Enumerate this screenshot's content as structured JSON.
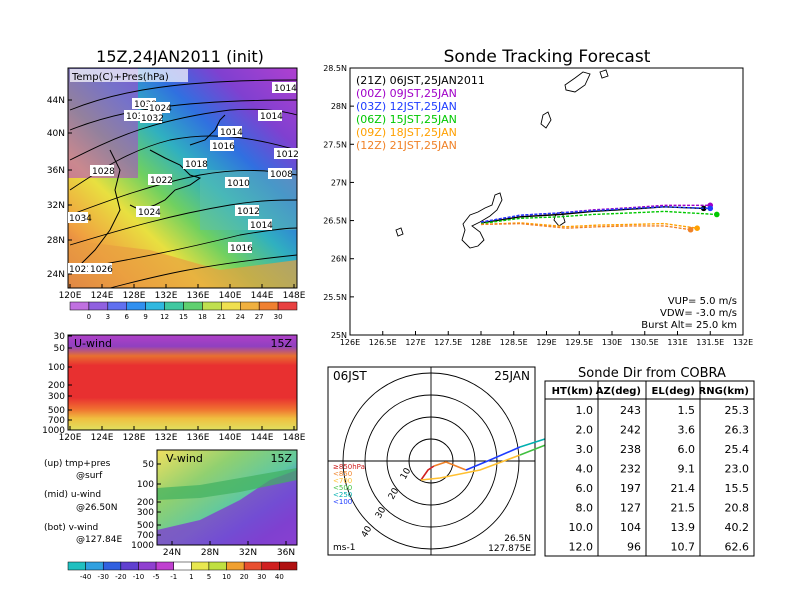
{
  "left_map": {
    "title": "15Z,24JAN2011 (init)",
    "legend": "Temp(C)+Pres(hPa)",
    "lat_ticks": [
      "44N",
      "40N",
      "36N",
      "32N",
      "28N",
      "24N"
    ],
    "lon_ticks": [
      "120E",
      "124E",
      "128E",
      "132E",
      "136E",
      "140E",
      "144E",
      "148E"
    ],
    "isobar_labels": [
      "1014",
      "1014",
      "1030",
      "1032",
      "1024",
      "1032",
      "1014",
      "1016",
      "1012",
      "1028",
      "1018",
      "1008",
      "1022",
      "1010",
      "1024",
      "1012",
      "1014",
      "1034",
      "1016",
      "1021",
      "1026"
    ],
    "colorbar": [
      "0",
      "3",
      "6",
      "9",
      "12",
      "15",
      "18",
      "21",
      "24",
      "27",
      "30"
    ]
  },
  "u_panel": {
    "title": "U-wind",
    "time": "15Z",
    "pres_ticks": [
      "30",
      "50",
      "100",
      "200",
      "300",
      "500",
      "700",
      "1000"
    ],
    "lon_ticks": [
      "120E",
      "124E",
      "128E",
      "132E",
      "136E",
      "140E",
      "144E",
      "148E"
    ]
  },
  "v_panel": {
    "title": "V-wind",
    "time": "15Z",
    "pres_ticks": [
      "50",
      "100",
      "200",
      "300",
      "500",
      "700",
      "1000"
    ],
    "lat_ticks": [
      "24N",
      "28N",
      "32N",
      "36N"
    ],
    "colorbar": [
      "-40",
      "-30",
      "-20",
      "-10",
      "-5",
      "-1",
      "1",
      "5",
      "10",
      "20",
      "30",
      "40"
    ]
  },
  "notes": [
    "(up) tmp+pres",
    "@surf",
    "(mid) u-wind",
    "@26.50N",
    "(bot) v-wind",
    "@127.84E"
  ],
  "track": {
    "title": "Sonde Tracking Forecast",
    "lat_ticks": [
      "28.5N",
      "28N",
      "27.5N",
      "27N",
      "26.5N",
      "26N",
      "25.5N",
      "25N"
    ],
    "lon_ticks": [
      "126E",
      "126.5E",
      "127E",
      "127.5E",
      "128E",
      "128.5E",
      "129E",
      "129.5E",
      "130E",
      "130.5E",
      "131E",
      "131.5E",
      "132E"
    ],
    "legend": [
      {
        "label": "(21Z)  06JST,25JAN2011",
        "color": "#000000"
      },
      {
        "label": "(00Z)  09JST,25JAN",
        "color": "#a000c8"
      },
      {
        "label": "(03Z)  12JST,25JAN",
        "color": "#1e3cff"
      },
      {
        "label": "(06Z)  15JST,25JAN",
        "color": "#00c800"
      },
      {
        "label": "(09Z)  18JST,25JAN",
        "color": "#ffa000"
      },
      {
        "label": "(12Z)  21JST,25JAN",
        "color": "#f08228"
      }
    ],
    "info": [
      "VUP=  5.0  m/s",
      "VDW=  -3.0  m/s",
      "Burst Alt=  25.0  km"
    ]
  },
  "polar": {
    "time": "06JST",
    "date": "25JAN",
    "pressure_legend": [
      "≥850hPa",
      "<850",
      "<700",
      "<500",
      "<250",
      "<100"
    ],
    "ring_labels": [
      "10",
      "20",
      "30",
      "40"
    ],
    "units": "ms-1",
    "loc_lat": "26.5N",
    "loc_lon": "127.875E"
  },
  "cobra": {
    "title": "Sonde Dir from COBRA",
    "headers": [
      "HT(km)",
      "AZ(deg)",
      "EL(deg)",
      "RNG(km)"
    ],
    "rows": [
      [
        "1.0",
        "243",
        "1.5",
        "25.3"
      ],
      [
        "2.0",
        "242",
        "3.6",
        "26.3"
      ],
      [
        "3.0",
        "238",
        "6.0",
        "25.4"
      ],
      [
        "4.0",
        "232",
        "9.1",
        "23.0"
      ],
      [
        "6.0",
        "197",
        "21.4",
        "15.5"
      ],
      [
        "8.0",
        "127",
        "21.5",
        "20.8"
      ],
      [
        "10.0",
        "104",
        "13.9",
        "40.2"
      ],
      [
        "12.0",
        "96",
        "10.7",
        "62.6"
      ]
    ]
  },
  "chart_data": [
    {
      "type": "line",
      "title": "Sonde Tracking Forecast",
      "xlabel": "",
      "ylabel": "",
      "xlim": [
        126,
        132
      ],
      "ylim": [
        25,
        28.5
      ],
      "series": [
        {
          "name": "(21Z)  06JST,25JAN2011",
          "x": [
            128.0,
            128.6,
            129.2,
            129.7,
            130.3,
            130.8,
            131.4
          ],
          "y": [
            26.47,
            26.55,
            26.58,
            26.62,
            26.65,
            26.68,
            26.66
          ]
        },
        {
          "name": "(00Z)  09JST,25JAN",
          "x": [
            128.0,
            128.6,
            129.2,
            129.7,
            130.3,
            130.8,
            131.5
          ],
          "y": [
            26.48,
            26.57,
            26.6,
            26.64,
            26.67,
            26.7,
            26.7
          ]
        },
        {
          "name": "(03Z)  12JST,25JAN",
          "x": [
            128.0,
            128.6,
            129.2,
            129.7,
            130.3,
            130.8,
            131.5
          ],
          "y": [
            26.48,
            26.57,
            26.6,
            26.63,
            26.66,
            26.68,
            26.66
          ]
        },
        {
          "name": "(06Z)  15JST,25JAN",
          "x": [
            128.0,
            128.6,
            129.2,
            129.7,
            130.3,
            130.8,
            131.6
          ],
          "y": [
            26.46,
            26.53,
            26.55,
            26.58,
            26.6,
            26.62,
            26.58
          ]
        },
        {
          "name": "(09Z)  18JST,25JAN",
          "x": [
            128.0,
            128.6,
            129.3,
            129.8,
            130.3,
            130.8,
            131.3
          ],
          "y": [
            26.45,
            26.47,
            26.42,
            26.44,
            26.45,
            26.46,
            26.4
          ]
        },
        {
          "name": "(12Z)  21JST,25JAN",
          "x": [
            128.0,
            128.6,
            129.3,
            129.8,
            130.3,
            130.8,
            131.2
          ],
          "y": [
            26.45,
            26.46,
            26.4,
            26.42,
            26.43,
            26.43,
            26.38
          ]
        }
      ]
    },
    {
      "type": "table",
      "title": "Sonde Dir from COBRA",
      "columns": [
        "HT(km)",
        "AZ(deg)",
        "EL(deg)",
        "RNG(km)"
      ],
      "rows": [
        [
          1.0,
          243,
          1.5,
          25.3
        ],
        [
          2.0,
          242,
          3.6,
          26.3
        ],
        [
          3.0,
          238,
          6.0,
          25.4
        ],
        [
          4.0,
          232,
          9.1,
          23.0
        ],
        [
          6.0,
          197,
          21.4,
          15.5
        ],
        [
          8.0,
          127,
          21.5,
          20.8
        ],
        [
          10.0,
          104,
          13.9,
          40.2
        ],
        [
          12.0,
          96,
          10.7,
          62.6
        ]
      ]
    }
  ]
}
